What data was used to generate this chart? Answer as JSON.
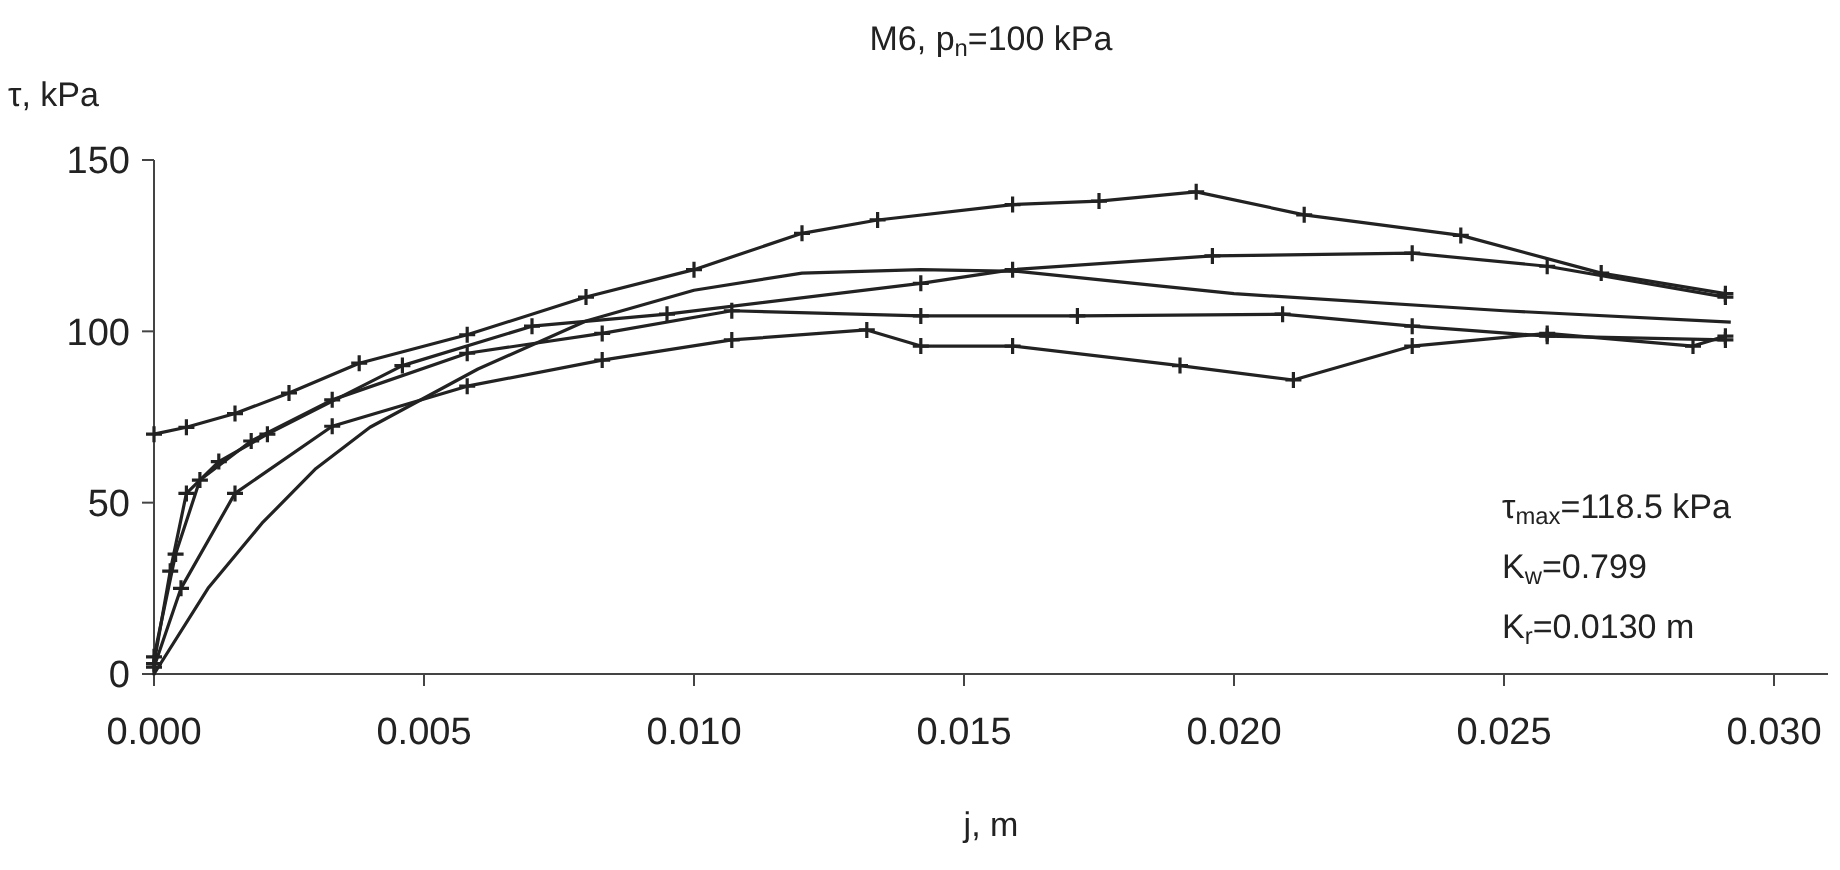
{
  "chart_data": {
    "type": "line",
    "title": "M6, p$_{n}$=100 kPa",
    "xlabel": "j, m",
    "ylabel": "τ, kPa",
    "xlim": [
      0,
      0.031
    ],
    "xticks": [
      {
        "value": 0,
        "label": "0.000"
      },
      {
        "value": 0.005,
        "label": "0.005"
      },
      {
        "value": 0.01,
        "label": "0.010"
      },
      {
        "value": 0.015,
        "label": "0.015"
      },
      {
        "value": 0.02,
        "label": "0.020"
      },
      {
        "value": 0.025,
        "label": "0.025"
      },
      {
        "value": 0.03,
        "label": "0.030"
      }
    ],
    "ylim": [
      0,
      150
    ],
    "yticks": [
      0,
      50,
      100,
      150
    ],
    "grid": false,
    "series": [
      {
        "color": "#222222",
        "marker": "cross",
        "x": [
          0,
          0.0006,
          0.0015,
          0.0025,
          0.0038,
          0.0058,
          0.008,
          0.01,
          0.012,
          0.0134,
          0.0159,
          0.0175,
          0.0193,
          0.0213,
          0.0242,
          0.0268,
          0.0291
        ],
        "values": [
          70,
          72,
          76,
          82,
          90.7,
          99,
          110,
          118,
          128.6,
          132.5,
          137,
          138,
          140.7,
          134,
          128,
          117,
          111
        ]
      },
      {
        "color": "#222222",
        "marker": "cross",
        "x": [
          0,
          0.0003,
          0.0006,
          0.0012,
          0.0021,
          0.0046,
          0.007,
          0.0095,
          0.0142,
          0.0159,
          0.0196,
          0.0233,
          0.0258,
          0.0291
        ],
        "values": [
          3,
          30,
          52.7,
          62,
          70,
          90,
          101.5,
          105,
          114,
          118,
          122,
          122.8,
          119,
          110
        ]
      },
      {
        "color": "#222222",
        "marker": "cross",
        "x": [
          0,
          0.0004,
          0.00085,
          0.0018,
          0.0033,
          0.0058,
          0.0083,
          0.0107,
          0.0142,
          0.0171,
          0.0209,
          0.0233,
          0.0258,
          0.0291
        ],
        "values": [
          5,
          35,
          56.6,
          68,
          80,
          93.6,
          99.4,
          106,
          104.5,
          104.5,
          105,
          101.5,
          98.6,
          97.5
        ]
      },
      {
        "color": "#222222",
        "marker": "cross",
        "x": [
          0,
          0.0005,
          0.0015,
          0.0033,
          0.0058,
          0.0083,
          0.0107,
          0.0132,
          0.0142,
          0.0159,
          0.019,
          0.0211,
          0.0233,
          0.0258,
          0.0285,
          0.0291
        ],
        "values": [
          2,
          25,
          52.7,
          72.3,
          84,
          91.6,
          97.5,
          100.4,
          95.7,
          95.7,
          90,
          85.8,
          95.7,
          99.4,
          95.7,
          98.6
        ]
      },
      {
        "color": "#222222",
        "marker": "none",
        "x": [
          0,
          0.001,
          0.002,
          0.003,
          0.004,
          0.006,
          0.008,
          0.01,
          0.012,
          0.0142,
          0.016,
          0.02,
          0.025,
          0.0292
        ],
        "values": [
          0,
          25,
          44,
          60,
          72,
          89,
          103,
          112,
          117,
          118,
          117.5,
          111,
          106,
          102.7
        ]
      }
    ],
    "annotations": [
      "τ$_{max}$=118.5 kPa",
      "K$_{w}$=0.799",
      "K$_{r}$=0.0130 m"
    ]
  }
}
